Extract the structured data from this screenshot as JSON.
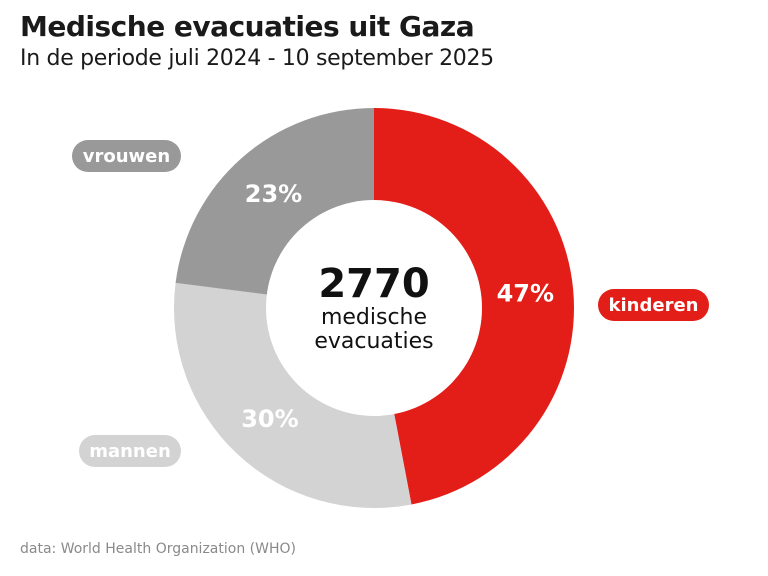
{
  "header": {
    "title": "Medische evacuaties uit Gaza",
    "subtitle": "In de periode juli 2024 - 10 september 2025"
  },
  "footer": {
    "source": "data: World Health Organization (WHO)"
  },
  "chart_data": {
    "type": "pie",
    "variant": "donut",
    "title": "Medische evacuaties uit Gaza",
    "subtitle": "In de periode juli 2024 - 10 september 2025",
    "center_label": {
      "value": "2770",
      "line1": "medische",
      "line2": "evacuaties"
    },
    "start_angle_deg": 0,
    "direction": "clockwise",
    "slices": [
      {
        "name": "kinderen",
        "value": 47,
        "label": "47%",
        "color": "#e31e18",
        "legend_side": "right"
      },
      {
        "name": "mannen",
        "value": 30,
        "label": "30%",
        "color": "#d3d3d3",
        "legend_side": "bottom-left"
      },
      {
        "name": "vrouwen",
        "value": 23,
        "label": "23%",
        "color": "#999999",
        "legend_side": "top-left"
      }
    ],
    "source": "data: World Health Organization (WHO)"
  }
}
